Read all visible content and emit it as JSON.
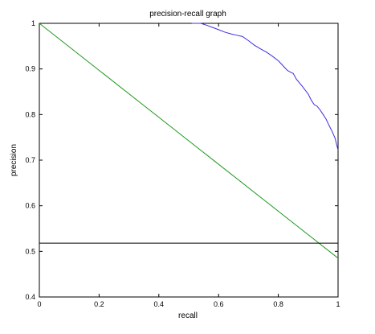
{
  "chart_data": {
    "type": "line",
    "title": "precision-recall graph",
    "xlabel": "recall",
    "ylabel": "precision",
    "xlim": [
      0,
      1
    ],
    "ylim": [
      0.4,
      1
    ],
    "grid": false,
    "legend": "none",
    "xticks": [
      0,
      0.2,
      0.4,
      0.6,
      0.8,
      1
    ],
    "xtick_labels": [
      "0",
      "0.2",
      "0.4",
      "0.6",
      "0.8",
      "1"
    ],
    "yticks": [
      0.4,
      0.5,
      0.6,
      0.7,
      0.8,
      0.9,
      1
    ],
    "ytick_labels": [
      "0.4",
      "0.5",
      "0.6",
      "0.7",
      "0.8",
      "0.9",
      "1"
    ],
    "series": [
      {
        "color": "#3c2ee0",
        "x": [
          0.51,
          0.54,
          0.56,
          0.58,
          0.6,
          0.62,
          0.64,
          0.66,
          0.68,
          0.7,
          0.72,
          0.74,
          0.76,
          0.78,
          0.8,
          0.81,
          0.82,
          0.83,
          0.84,
          0.85,
          0.86,
          0.88,
          0.9,
          0.91,
          0.92,
          0.93,
          0.94,
          0.95,
          0.96,
          0.97,
          0.98,
          0.99,
          0.995,
          1.0
        ],
        "y": [
          1.0,
          1.0,
          0.996,
          0.991,
          0.986,
          0.981,
          0.977,
          0.974,
          0.971,
          0.962,
          0.952,
          0.944,
          0.937,
          0.928,
          0.918,
          0.911,
          0.904,
          0.897,
          0.893,
          0.89,
          0.878,
          0.862,
          0.845,
          0.832,
          0.822,
          0.818,
          0.81,
          0.8,
          0.79,
          0.776,
          0.763,
          0.748,
          0.735,
          0.722
        ]
      },
      {
        "color": "#1f9a1f",
        "x": [
          0,
          1
        ],
        "y": [
          1.0,
          0.485
        ]
      },
      {
        "color": "#000000",
        "x": [
          0,
          1
        ],
        "y": [
          0.518,
          0.518
        ]
      }
    ]
  }
}
